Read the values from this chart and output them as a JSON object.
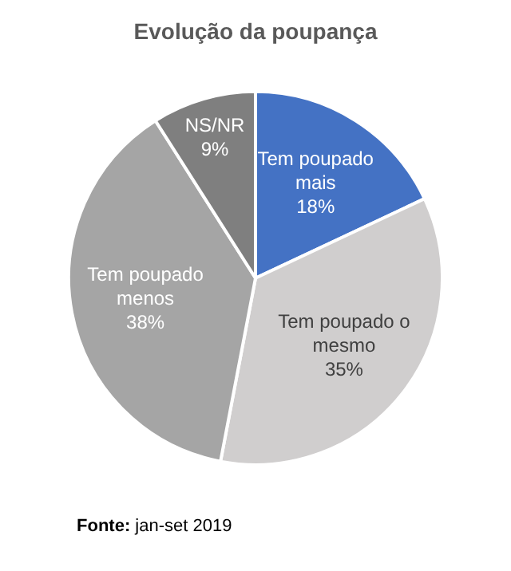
{
  "chart_data": {
    "type": "pie",
    "title": "Evolução da poupança",
    "categories": [
      "Tem poupado mais",
      "Tem poupado o mesmo",
      "Tem poupado menos",
      "NS/NR"
    ],
    "values": [
      18,
      35,
      38,
      9
    ],
    "colors": [
      "#4472c4",
      "#d0cece",
      "#a5a5a5",
      "#7f7f7f"
    ],
    "value_labels": [
      "18%",
      "35%",
      "38%",
      "9%"
    ],
    "legend": false,
    "annotations": [
      "Fonte: jan-set 2019"
    ]
  }
}
